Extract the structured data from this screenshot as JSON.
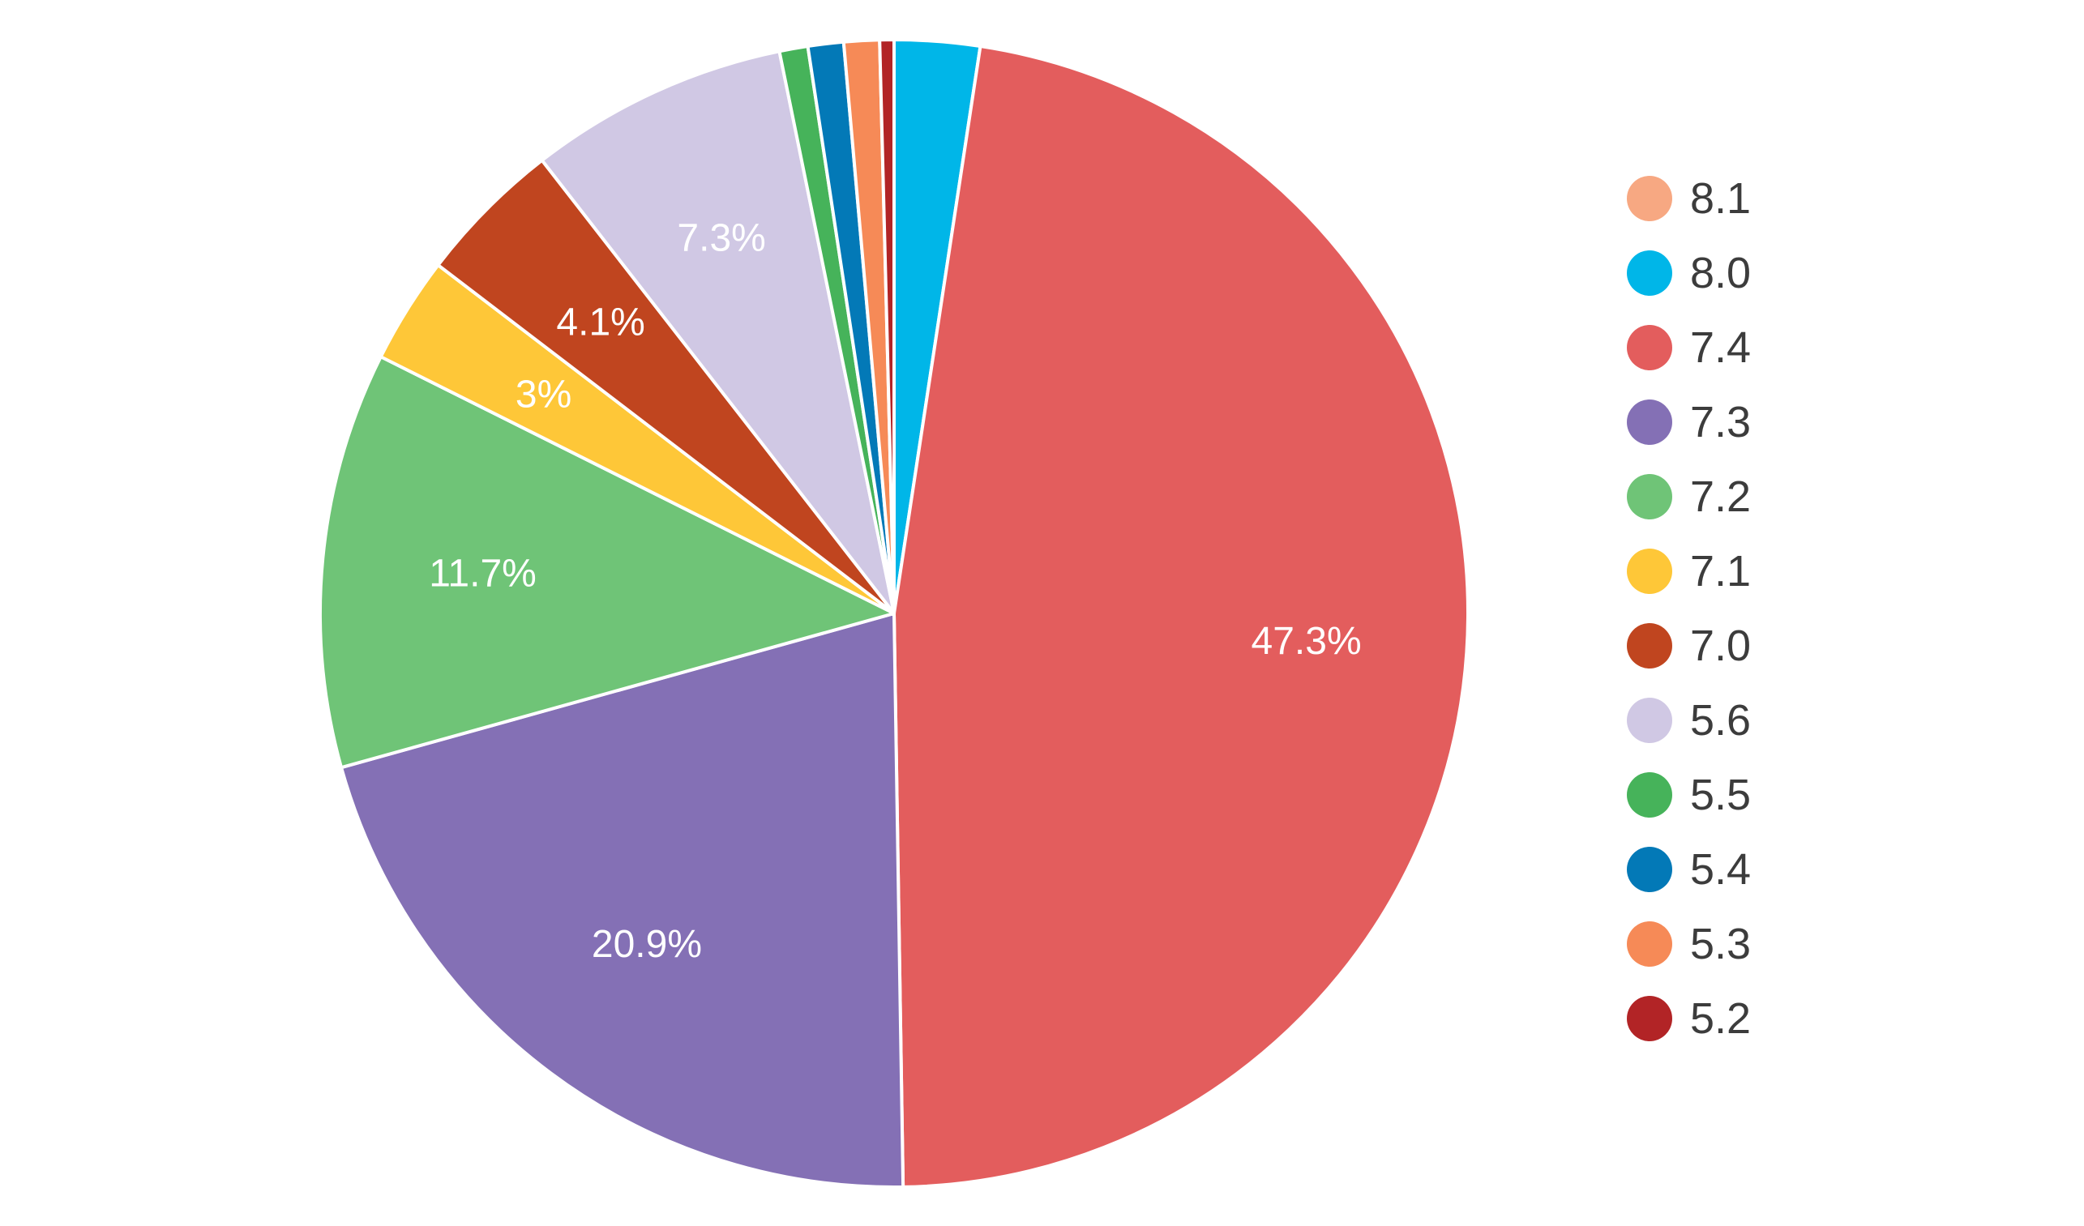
{
  "chart_data": {
    "type": "pie",
    "categories": [
      "8.1",
      "8.0",
      "7.4",
      "7.3",
      "7.2",
      "7.1",
      "7.0",
      "5.6",
      "5.5",
      "5.4",
      "5.3",
      "5.2"
    ],
    "values": [
      0.0,
      2.4,
      47.3,
      20.9,
      11.7,
      3.0,
      4.1,
      7.3,
      0.8,
      1.0,
      1.0,
      0.4
    ],
    "data_labels": [
      "",
      "",
      "47.3%",
      "20.9%",
      "11.7%",
      "3%",
      "4.1%",
      "7.3%",
      "",
      "",
      "",
      ""
    ],
    "colors": [
      "#f7a882",
      "#00b6e8",
      "#e35d5d",
      "#8470b5",
      "#6fc477",
      "#fec738",
      "#c0451f",
      "#d0c8e4",
      "#46b35a",
      "#0379b7",
      "#f68a57",
      "#b22426"
    ],
    "start_angle_deg": 0,
    "direction": "clockwise",
    "legend": {
      "position": "right",
      "entries": [
        "8.1",
        "8.0",
        "7.4",
        "7.3",
        "7.2",
        "7.1",
        "7.0",
        "5.6",
        "5.5",
        "5.4",
        "5.3",
        "5.2"
      ]
    }
  }
}
